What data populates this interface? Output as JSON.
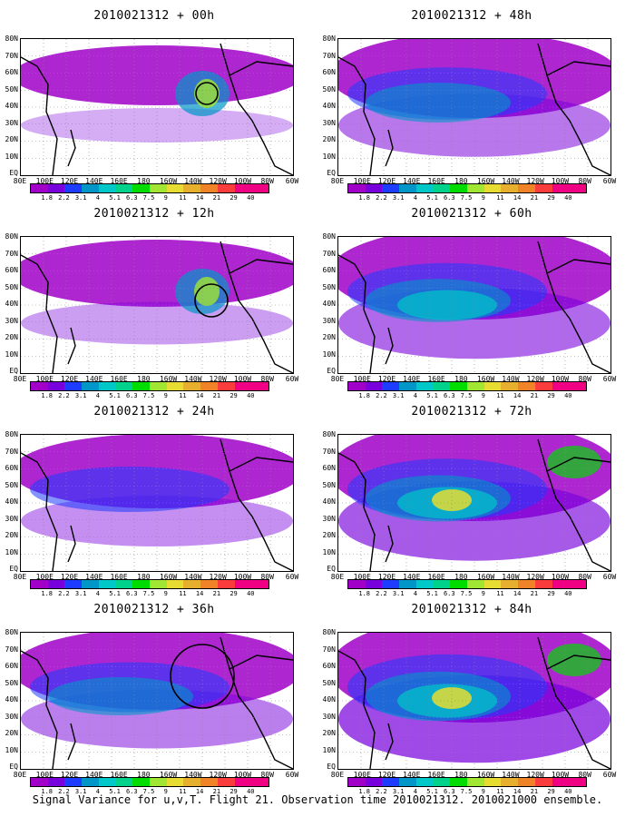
{
  "panels": [
    {
      "title": "2010021312 + 00h",
      "intensity": 0.2,
      "rings": [
        [
          205,
          60,
          12
        ]
      ]
    },
    {
      "title": "2010021312 + 48h",
      "intensity": 0.55,
      "rings": []
    },
    {
      "title": "2010021312 + 12h",
      "intensity": 0.3,
      "rings": [
        [
          210,
          70,
          18
        ]
      ]
    },
    {
      "title": "2010021312 + 60h",
      "intensity": 0.65,
      "rings": []
    },
    {
      "title": "2010021312 + 24h",
      "intensity": 0.4,
      "rings": []
    },
    {
      "title": "2010021312 + 72h",
      "intensity": 0.75,
      "rings": []
    },
    {
      "title": "2010021312 + 36h",
      "intensity": 0.5,
      "rings": [
        [
          200,
          48,
          35
        ]
      ]
    },
    {
      "title": "2010021312 + 84h",
      "intensity": 0.85,
      "rings": []
    }
  ],
  "y_labels": [
    "80N",
    "70N",
    "60N",
    "50N",
    "40N",
    "30N",
    "20N",
    "10N",
    "EQ"
  ],
  "x_labels": [
    "80E",
    "100E",
    "120E",
    "140E",
    "160E",
    "180",
    "160W",
    "140W",
    "120W",
    "100W",
    "80W",
    "60W"
  ],
  "colorbar": {
    "labels": [
      "1.8",
      "2.2",
      "3.1",
      "4",
      "5.1",
      "6.3",
      "7.5",
      "9",
      "11",
      "14",
      "21",
      "29",
      "40"
    ],
    "colors": [
      "#a000c8",
      "#7800dc",
      "#1e3cff",
      "#0096c8",
      "#00c8c8",
      "#00d28c",
      "#00dc00",
      "#a0e632",
      "#e6dc32",
      "#e6af2d",
      "#f08228",
      "#fa3c3c",
      "#f00082"
    ]
  },
  "footer": "Signal Variance for u,v,T. Flight 21. Observation time 2010021312. 2010021000 ensemble."
}
